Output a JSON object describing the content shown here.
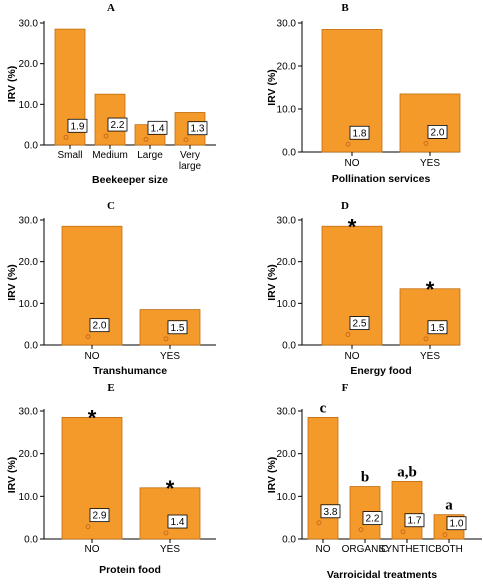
{
  "chart_data": [
    {
      "type": "bar",
      "title": "A",
      "ylabel": "IRV (%)",
      "xlabel": "Beekeeper size",
      "ylim": [
        0,
        30
      ],
      "yticks": [
        "0.0",
        "10.0",
        "20.0",
        "30.0"
      ],
      "categories": [
        "Small",
        "Medium",
        "Large",
        "Very large"
      ],
      "values": [
        28.5,
        12.5,
        5.0,
        8.0
      ],
      "point_values": [
        1.9,
        2.2,
        1.4,
        1.3
      ],
      "labels": [
        "1.9",
        "2.2",
        "1.4",
        "1.3"
      ],
      "annotations": [
        "",
        "",
        "",
        ""
      ]
    },
    {
      "type": "bar",
      "title": "B",
      "ylabel": "IRV (%)",
      "xlabel": "Pollination services",
      "ylim": [
        0,
        30
      ],
      "yticks": [
        "0.0",
        "10.0",
        "20.0",
        "30.0"
      ],
      "categories": [
        "NO",
        "YES"
      ],
      "values": [
        28.5,
        13.5
      ],
      "point_values": [
        1.8,
        2.0
      ],
      "labels": [
        "1.8",
        "2.0"
      ],
      "annotations": [
        "",
        ""
      ]
    },
    {
      "type": "bar",
      "title": "C",
      "ylabel": "IRV (%)",
      "xlabel": "Transhumance",
      "ylim": [
        0,
        30
      ],
      "yticks": [
        "0.0",
        "10.0",
        "20.0",
        "30.0"
      ],
      "categories": [
        "NO",
        "YES"
      ],
      "values": [
        28.5,
        8.5
      ],
      "point_values": [
        2.0,
        1.5
      ],
      "labels": [
        "2.0",
        "1.5"
      ],
      "annotations": [
        "",
        ""
      ]
    },
    {
      "type": "bar",
      "title": "D",
      "ylabel": "IRV (%)",
      "xlabel": "Energy food",
      "ylim": [
        0,
        30
      ],
      "yticks": [
        "0.0",
        "10.0",
        "20.0",
        "30.0"
      ],
      "categories": [
        "NO",
        "YES"
      ],
      "values": [
        28.5,
        13.5
      ],
      "point_values": [
        2.5,
        1.5
      ],
      "labels": [
        "2.5",
        "1.5"
      ],
      "annotations": [
        "*",
        "*"
      ]
    },
    {
      "type": "bar",
      "title": "E",
      "ylabel": "IRV (%)",
      "xlabel": "Protein food",
      "ylim": [
        0,
        30
      ],
      "yticks": [
        "0.0",
        "10.0",
        "20.0",
        "30.0"
      ],
      "categories": [
        "NO",
        "YES"
      ],
      "values": [
        28.5,
        12.0
      ],
      "point_values": [
        2.9,
        1.4
      ],
      "labels": [
        "2.9",
        "1.4"
      ],
      "annotations": [
        "*",
        "*"
      ]
    },
    {
      "type": "bar",
      "title": "F",
      "ylabel": "IRV (%)",
      "xlabel": "Varroicidal treatments",
      "ylim": [
        0,
        30
      ],
      "yticks": [
        "0.0",
        "10.0",
        "20.0",
        "30.0"
      ],
      "categories": [
        "NO",
        "ORGANIC",
        "SYNTHETIC",
        "BOTH"
      ],
      "values": [
        28.5,
        12.3,
        13.5,
        5.7
      ],
      "point_values": [
        3.8,
        2.2,
        1.7,
        1.0
      ],
      "labels": [
        "3.8",
        "2.2",
        "1.7",
        "1.0"
      ],
      "annotations": [
        "c",
        "b",
        "a,b",
        "a"
      ]
    }
  ],
  "colors": {
    "bar_fill": "#f39a2a",
    "bar_stroke": "#c46e10",
    "axis": "#000000",
    "point": "#c0601a"
  }
}
